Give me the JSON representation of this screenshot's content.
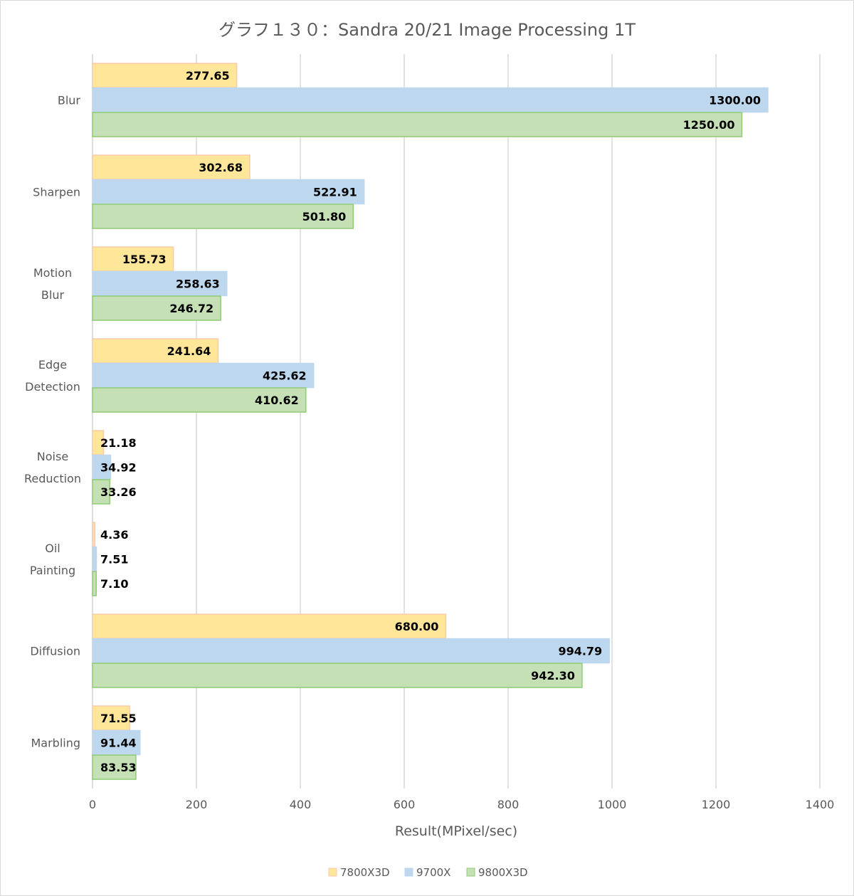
{
  "chart_data": {
    "type": "bar",
    "orientation": "horizontal",
    "title": "グラフ１３０：Sandra 20/21 Image Processing 1T",
    "xlabel": "Result(MPixel/sec)",
    "ylabel": "",
    "xlim": [
      0,
      1400
    ],
    "xticks": [
      "0",
      "200",
      "400",
      "600",
      "800",
      "1000",
      "1200",
      "1400"
    ],
    "grid": "vertical",
    "legend_position": "bottom",
    "categories": [
      [
        "Blur"
      ],
      [
        "Sharpen"
      ],
      [
        "Motion",
        "Blur"
      ],
      [
        "Edge",
        "Detection"
      ],
      [
        "Noise",
        "Reduction"
      ],
      [
        "Oil",
        "Painting"
      ],
      [
        "Diffusion"
      ],
      [
        "Marbling"
      ]
    ],
    "series": [
      {
        "name": "7800X3D",
        "fill": "#ffe699",
        "stroke": "#f8cbad",
        "values": [
          277.65,
          302.68,
          155.73,
          241.64,
          21.18,
          4.36,
          680.0,
          71.55
        ],
        "labels": [
          "277.65",
          "302.68",
          "155.73",
          "241.64",
          "21.18",
          "4.36",
          "680.00",
          "71.55"
        ]
      },
      {
        "name": "9700X",
        "fill": "#bdd7ee",
        "stroke": "#bdd7ee",
        "values": [
          1300.0,
          522.91,
          258.63,
          425.62,
          34.92,
          7.51,
          994.79,
          91.44
        ],
        "labels": [
          "1300.00",
          "522.91",
          "258.63",
          "425.62",
          "34.92",
          "7.51",
          "994.79",
          "91.44"
        ]
      },
      {
        "name": "9800X3D",
        "fill": "#c5e0b4",
        "stroke": "#8fcc74",
        "values": [
          1250.0,
          501.8,
          246.72,
          410.62,
          33.26,
          7.1,
          942.3,
          83.53
        ],
        "labels": [
          "1250.00",
          "501.80",
          "246.72",
          "410.62",
          "33.26",
          "7.10",
          "942.30",
          "83.53"
        ]
      }
    ]
  }
}
